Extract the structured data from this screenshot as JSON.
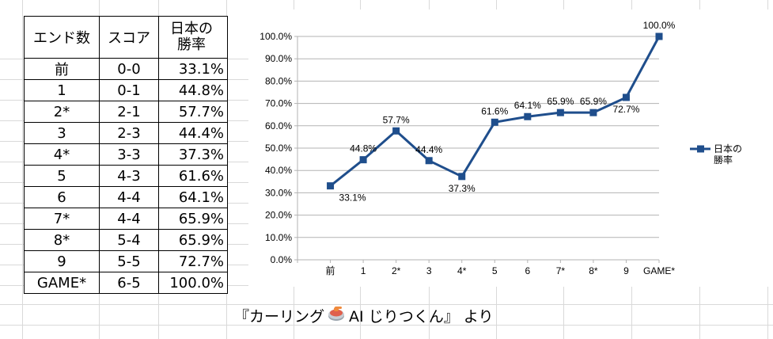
{
  "table": {
    "headers": [
      "エンド数",
      "スコア",
      "日本の",
      "勝率"
    ],
    "rows": [
      {
        "end": "前",
        "score": "0-0",
        "rate": "33.1%"
      },
      {
        "end": "1",
        "score": "0-1",
        "rate": "44.8%"
      },
      {
        "end": "2*",
        "score": "2-1",
        "rate": "57.7%"
      },
      {
        "end": "3",
        "score": "2-3",
        "rate": "44.4%"
      },
      {
        "end": "4*",
        "score": "3-3",
        "rate": "37.3%"
      },
      {
        "end": "5",
        "score": "4-3",
        "rate": "61.6%"
      },
      {
        "end": "6",
        "score": "4-4",
        "rate": "64.1%"
      },
      {
        "end": "7*",
        "score": "4-4",
        "rate": "65.9%"
      },
      {
        "end": "8*",
        "score": "5-4",
        "rate": "65.9%"
      },
      {
        "end": "9",
        "score": "5-5",
        "rate": "72.7%"
      },
      {
        "end": "GAME*",
        "score": "6-5",
        "rate": "100.0%"
      }
    ]
  },
  "chart_data": {
    "type": "line",
    "categories": [
      "前",
      "1",
      "2*",
      "3",
      "4*",
      "5",
      "6",
      "7*",
      "8*",
      "9",
      "GAME*"
    ],
    "series": [
      {
        "name": "日本の勝率",
        "legend_lines": [
          "日本の",
          "勝率"
        ],
        "values": [
          33.1,
          44.8,
          57.7,
          44.4,
          37.3,
          61.6,
          64.1,
          65.9,
          65.9,
          72.7,
          100.0
        ],
        "data_labels": [
          "33.1%",
          "44.8%",
          "57.7%",
          "44.4%",
          "37.3%",
          "61.6%",
          "64.1%",
          "65.9%",
          "65.9%",
          "72.7%",
          "100.0%"
        ]
      }
    ],
    "yticks": [
      "0.0%",
      "10.0%",
      "20.0%",
      "30.0%",
      "40.0%",
      "50.0%",
      "60.0%",
      "70.0%",
      "80.0%",
      "90.0%",
      "100.0%"
    ],
    "ylim": [
      0,
      100
    ],
    "grid": true,
    "legend": "right",
    "color": "#1f4e8c"
  },
  "caption": {
    "prefix": "『カーリング",
    "suffix": "AI じりつくん』 より",
    "icon": "curling-stone-icon"
  }
}
